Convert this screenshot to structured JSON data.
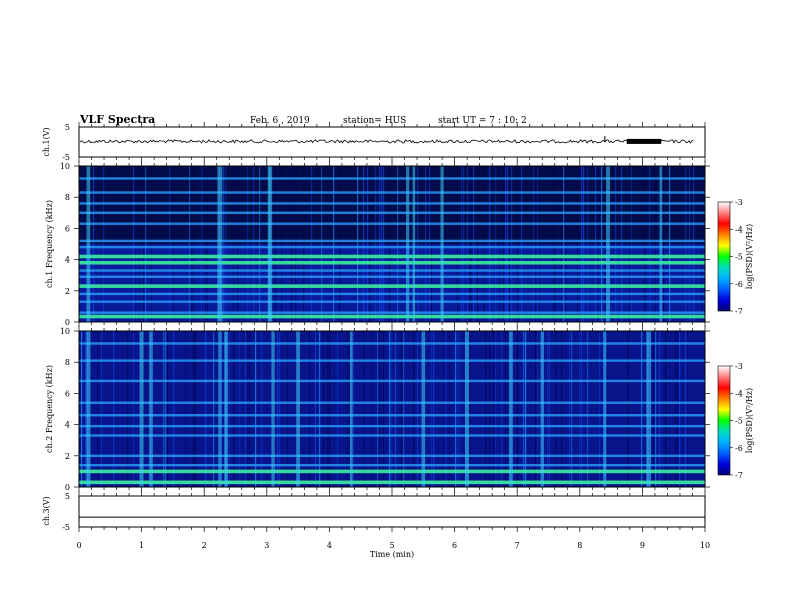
{
  "header": {
    "title": "VLF Spectra",
    "date": "Feb. 6 , 2019",
    "station": "station= HUS",
    "start": "start UT = 7 : 10: 2"
  },
  "colorbar": {
    "label": "log(PSD)(V²/Hz)",
    "ticks": [
      "-3",
      "-4",
      "-5",
      "-6",
      "-7"
    ],
    "colors": [
      "#ffffff",
      "#ff8080",
      "#ff0000",
      "#ff8000",
      "#ffff00",
      "#00ff00",
      "#00e0c0",
      "#00b0ff",
      "#0060ff",
      "#0000e0",
      "#000070"
    ]
  },
  "chart_data": {
    "type": "heatmap",
    "title": "VLF Spectra",
    "x_axis": {
      "label": "Time (min)",
      "range": [
        0,
        10
      ],
      "ticks": [
        "0",
        "1",
        "2",
        "3",
        "4",
        "5",
        "6",
        "7",
        "8",
        "9",
        "10"
      ]
    },
    "panels": [
      {
        "name": "ch1_waveform",
        "ylabel": "ch.1(V)",
        "y_ticks": [
          "5",
          "-5"
        ],
        "ylim": [
          -5,
          5
        ],
        "baseline": 0.2,
        "spikes": [
          {
            "x": 8.4,
            "y": 2.0
          }
        ]
      },
      {
        "name": "ch1_spectrogram",
        "ylabel": "ch.1  Frequency (kHz)",
        "y_ticks": [
          "0",
          "2",
          "4",
          "6",
          "8",
          "10"
        ],
        "ylim": [
          0,
          10
        ],
        "bands_khz": [
          0.35,
          0.6,
          1.3,
          1.8,
          2.3,
          2.9,
          3.3,
          3.8,
          4.2,
          4.8,
          5.2,
          6.3,
          7.0,
          7.6,
          8.3,
          9.2
        ],
        "strong_bands_khz": [
          0.35,
          2.3,
          3.8,
          4.2
        ],
        "dark_region_khz": [
          5.0,
          10.0
        ],
        "events_min": [
          0.15,
          2.25,
          3.05,
          5.25,
          5.35,
          5.8,
          8.45,
          9.3
        ]
      },
      {
        "name": "ch2_spectrogram",
        "ylabel": "ch.2  Frequency (kHz)",
        "y_ticks": [
          "0",
          "2",
          "4",
          "6",
          "8",
          "10"
        ],
        "ylim": [
          0,
          10
        ],
        "bands_khz": [
          0.3,
          1.0,
          1.4,
          2.0,
          3.3,
          3.9,
          4.6,
          5.4,
          6.8,
          8.1,
          9.2
        ],
        "strong_bands_khz": [
          0.3,
          1.0
        ],
        "dark_region_khz": [],
        "events_min": [
          0.15,
          1.0,
          1.15,
          2.25,
          2.35,
          3.1,
          3.5,
          4.35,
          5.5,
          6.2,
          6.9,
          7.4,
          8.4,
          9.1
        ]
      },
      {
        "name": "ch3_waveform",
        "ylabel": "ch.3(V)",
        "y_ticks": [
          "5",
          "-5"
        ],
        "ylim": [
          -5,
          5
        ],
        "baseline": -1.8,
        "spikes": []
      }
    ]
  }
}
